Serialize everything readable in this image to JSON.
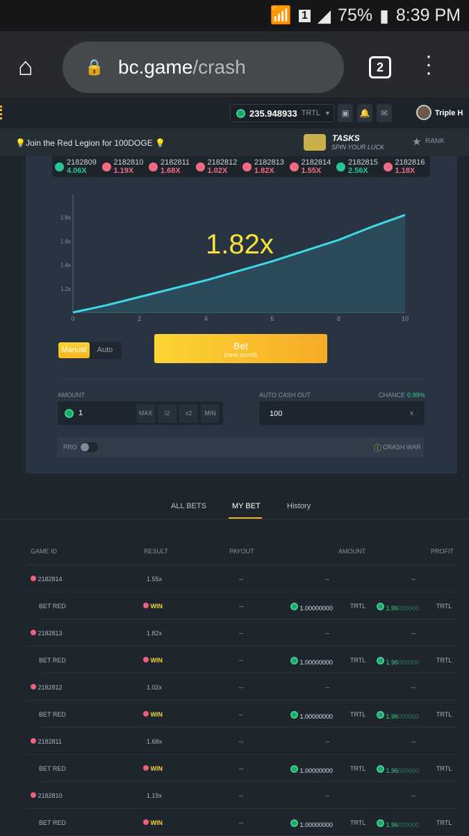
{
  "status_bar": {
    "sim": "1",
    "battery": "75%",
    "time": "8:39 PM"
  },
  "browser": {
    "domain": "bc.game",
    "path": "/crash",
    "tab_count": "2",
    "icons": [
      "home-icon",
      "lock-icon",
      "tabs-icon",
      "more-vert-icon"
    ]
  },
  "header": {
    "balance": "235.948933",
    "currency": "TRTL",
    "username": "Triple H"
  },
  "notice": {
    "text": "💡Join the Red Legion for 100DOGE 💡",
    "tasks_title": "TASKS",
    "tasks_sub": "SPIN YOUR LUCK",
    "rank": "RANK"
  },
  "history": [
    {
      "id": "2182809",
      "value": "4.06X",
      "color": "#27c59a"
    },
    {
      "id": "2182810",
      "value": "1.19X",
      "color": "#f16b84"
    },
    {
      "id": "2182811",
      "value": "1.68X",
      "color": "#f16b84"
    },
    {
      "id": "2182812",
      "value": "1.02X",
      "color": "#f16b84"
    },
    {
      "id": "2182813",
      "value": "1.82X",
      "color": "#f16b84"
    },
    {
      "id": "2182814",
      "value": "1.55X",
      "color": "#f16b84"
    },
    {
      "id": "2182815",
      "value": "2.56X",
      "color": "#27c59a"
    },
    {
      "id": "2182816",
      "value": "1.18X",
      "color": "#f16b84"
    }
  ],
  "chart_data": {
    "type": "area",
    "current_multiplier": "1.82x",
    "x": [
      0,
      1,
      2,
      3,
      4,
      5,
      6,
      7,
      8,
      9,
      10
    ],
    "y": [
      1.0,
      1.06,
      1.13,
      1.2,
      1.27,
      1.35,
      1.43,
      1.52,
      1.61,
      1.72,
      1.82
    ],
    "xlim": [
      0,
      10
    ],
    "ylim": [
      1.0,
      1.85
    ],
    "x_ticks": [
      "0",
      "2",
      "4",
      "6",
      "8",
      "10"
    ],
    "y_ticks": [
      "1.2x",
      "1.4x",
      "1.6x",
      "1.8x"
    ],
    "line_color": "#3fd8e6",
    "grid": false
  },
  "controls": {
    "manual": "Manual",
    "auto": "Auto",
    "bet": "Bet",
    "bet_sub": "(next round)",
    "amount_label": "AMOUNT",
    "amount_value": "1",
    "max": "MAX",
    "half": "/2",
    "double": "x2",
    "min": "MIN",
    "cashout_label": "AUTO CASH OUT",
    "cashout_value": "100",
    "cashout_unit": "x",
    "chance_label": "CHANCE",
    "chance_value": "0.99%",
    "pro": "PRO",
    "crash_war": "CRASH WAR"
  },
  "tabs": {
    "all": "ALL BETS",
    "my": "MY BET",
    "history": "History"
  },
  "table": {
    "headers": [
      "GAME ID",
      "RESULT",
      "PAYOUT",
      "AMOUNT",
      "PROFIT"
    ],
    "rows": [
      {
        "id": "2182814",
        "result": "1.55x"
      },
      {
        "id": "2182813",
        "result": "1.82x"
      },
      {
        "id": "2182812",
        "result": "1.02x"
      },
      {
        "id": "2182811",
        "result": "1.68x"
      },
      {
        "id": "2182810",
        "result": "1.19x"
      }
    ],
    "bet": {
      "label": "BET RED",
      "result": "WIN",
      "dash": "--",
      "amount": "1.00000000",
      "profit_a": "1.96",
      "profit_b": "000000",
      "currency": "TRTL"
    }
  }
}
